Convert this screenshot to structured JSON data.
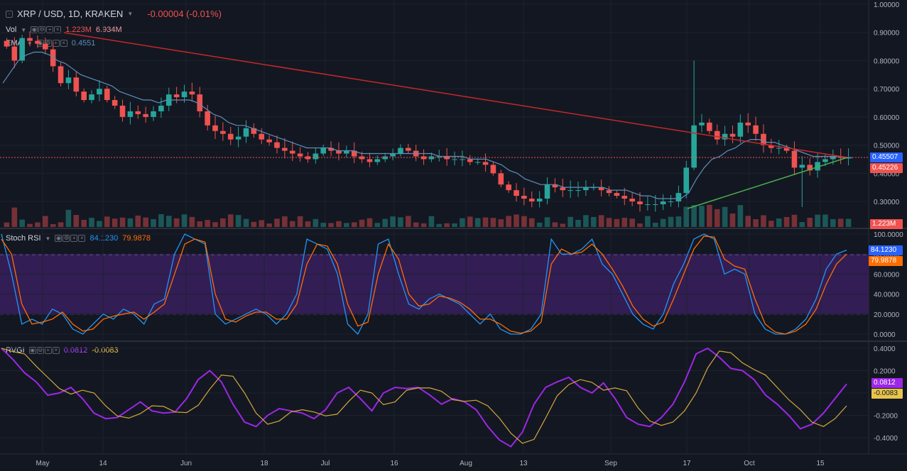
{
  "header": {
    "symbol": "XRP / USD, 1D, KRAKEN",
    "change": "-0.00004 (-0.01%)"
  },
  "vol_legend": {
    "label": "Vol",
    "v1": "1.223M",
    "v2": "6.934M"
  },
  "ema_legend": {
    "label": "EMA",
    "value": "0.4551"
  },
  "rsi_legend": {
    "label": "Stoch RSI",
    "k": "84.1230",
    "d": "79.9878"
  },
  "rvgi_legend": {
    "label": "RVGI",
    "v1": "0.0812",
    "v2": "-0.0083"
  },
  "price_axis": {
    "ticks": [
      "1.00000",
      "0.90000",
      "0.80000",
      "0.70000",
      "0.60000",
      "0.50000",
      "0.40000",
      "0.30000"
    ],
    "tag_last": "0.45507",
    "tag_prev": "0.45226",
    "tag_vol": "1.223M"
  },
  "rsi_axis": {
    "ticks": [
      "100.0000",
      "80.0000",
      "60.0000",
      "40.0000",
      "20.0000",
      "0.0000"
    ],
    "tag_k": "84.1230",
    "tag_d": "79.9878"
  },
  "rvgi_axis": {
    "ticks": [
      "0.4000",
      "0.2000",
      "0.0000",
      "-0.2000",
      "-0.4000"
    ],
    "tag_v1": "0.0812",
    "tag_v2": "-0.0083"
  },
  "time_axis": [
    "May",
    "14",
    "Jun",
    "18",
    "Jul",
    "16",
    "Aug",
    "13",
    "Sep",
    "17",
    "Oct",
    "15"
  ],
  "colors": {
    "up": "#26a69a",
    "down": "#ef5350",
    "ema": "#5b8fb9",
    "trend_down": "#c62828",
    "trend_up": "#4caf50",
    "rsi_k": "#2196f3",
    "rsi_d": "#ff6d00",
    "rvgi_1": "#9c27e6",
    "rvgi_2": "#d4a93a"
  },
  "chart_data": {
    "type": "candlestick",
    "y_scale": {
      "min": 0.28,
      "max": 1.0
    },
    "closes": [
      0.85,
      0.8,
      0.88,
      0.87,
      0.86,
      0.84,
      0.78,
      0.72,
      0.74,
      0.69,
      0.66,
      0.68,
      0.7,
      0.66,
      0.64,
      0.6,
      0.62,
      0.61,
      0.6,
      0.62,
      0.64,
      0.68,
      0.67,
      0.69,
      0.68,
      0.62,
      0.57,
      0.55,
      0.54,
      0.52,
      0.53,
      0.56,
      0.54,
      0.52,
      0.51,
      0.49,
      0.48,
      0.47,
      0.46,
      0.45,
      0.47,
      0.49,
      0.48,
      0.47,
      0.48,
      0.46,
      0.45,
      0.44,
      0.45,
      0.46,
      0.47,
      0.49,
      0.48,
      0.46,
      0.45,
      0.46,
      0.46,
      0.45,
      0.45,
      0.45,
      0.44,
      0.44,
      0.43,
      0.4,
      0.36,
      0.34,
      0.32,
      0.31,
      0.3,
      0.31,
      0.36,
      0.35,
      0.34,
      0.34,
      0.34,
      0.35,
      0.35,
      0.34,
      0.33,
      0.32,
      0.31,
      0.3,
      0.29,
      0.29,
      0.29,
      0.3,
      0.3,
      0.33,
      0.42,
      0.57,
      0.58,
      0.55,
      0.52,
      0.54,
      0.53,
      0.58,
      0.57,
      0.54,
      0.5,
      0.49,
      0.49,
      0.48,
      0.42,
      0.43,
      0.41,
      0.44,
      0.45,
      0.46,
      0.455,
      0.455
    ],
    "ema": [
      0.72,
      0.76,
      0.8,
      0.82,
      0.83,
      0.83,
      0.82,
      0.8,
      0.79,
      0.77,
      0.75,
      0.74,
      0.73,
      0.72,
      0.71,
      0.69,
      0.68,
      0.67,
      0.66,
      0.66,
      0.65,
      0.66,
      0.66,
      0.66,
      0.66,
      0.65,
      0.63,
      0.61,
      0.6,
      0.58,
      0.57,
      0.57,
      0.56,
      0.55,
      0.54,
      0.53,
      0.52,
      0.51,
      0.5,
      0.49,
      0.49,
      0.49,
      0.49,
      0.48,
      0.48,
      0.48,
      0.47,
      0.47,
      0.47,
      0.47,
      0.47,
      0.47,
      0.47,
      0.47,
      0.47,
      0.47,
      0.46,
      0.46,
      0.46,
      0.46,
      0.45,
      0.45,
      0.45,
      0.44,
      0.43,
      0.41,
      0.4,
      0.38,
      0.37,
      0.36,
      0.36,
      0.36,
      0.35,
      0.35,
      0.35,
      0.35,
      0.35,
      0.35,
      0.34,
      0.34,
      0.34,
      0.33,
      0.32,
      0.32,
      0.31,
      0.31,
      0.31,
      0.31,
      0.33,
      0.38,
      0.42,
      0.45,
      0.46,
      0.48,
      0.49,
      0.51,
      0.52,
      0.52,
      0.51,
      0.51,
      0.5,
      0.49,
      0.48,
      0.47,
      0.46,
      0.46,
      0.46,
      0.46,
      0.455,
      0.455
    ],
    "rsi_k": [
      100,
      60,
      10,
      15,
      10,
      25,
      20,
      5,
      0,
      10,
      20,
      15,
      25,
      20,
      10,
      30,
      35,
      80,
      100,
      95,
      90,
      20,
      10,
      15,
      20,
      25,
      20,
      10,
      20,
      40,
      95,
      90,
      85,
      60,
      10,
      0,
      20,
      90,
      95,
      60,
      30,
      25,
      35,
      40,
      35,
      30,
      20,
      10,
      20,
      5,
      0,
      0,
      5,
      20,
      95,
      80,
      80,
      85,
      95,
      70,
      60,
      40,
      20,
      10,
      5,
      20,
      50,
      70,
      95,
      100,
      95,
      60,
      65,
      60,
      20,
      5,
      0,
      0,
      5,
      15,
      35,
      65,
      80,
      84
    ],
    "rsi_d": [
      95,
      80,
      30,
      10,
      12,
      15,
      22,
      10,
      3,
      5,
      15,
      18,
      20,
      22,
      15,
      22,
      30,
      60,
      90,
      95,
      92,
      40,
      15,
      12,
      18,
      22,
      22,
      15,
      15,
      30,
      70,
      90,
      88,
      70,
      30,
      8,
      12,
      60,
      90,
      75,
      40,
      28,
      30,
      38,
      36,
      32,
      25,
      15,
      15,
      10,
      3,
      1,
      3,
      12,
      70,
      85,
      80,
      82,
      90,
      80,
      65,
      48,
      28,
      15,
      8,
      12,
      35,
      60,
      85,
      98,
      97,
      75,
      68,
      65,
      35,
      10,
      2,
      0,
      3,
      10,
      25,
      50,
      70,
      80
    ]
  }
}
